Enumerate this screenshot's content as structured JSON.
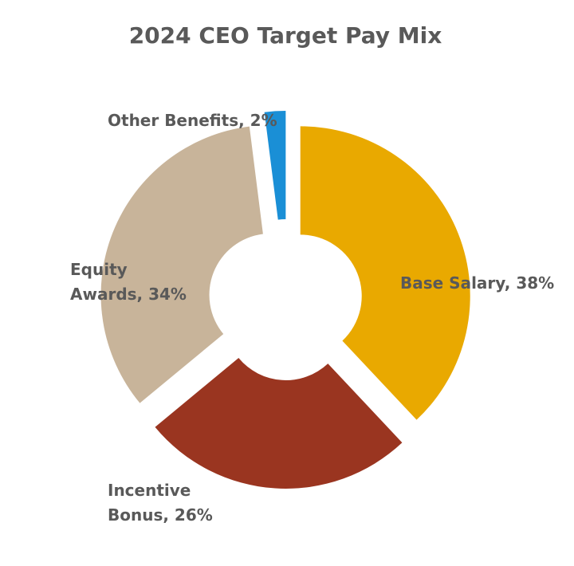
{
  "chart_data": {
    "type": "pie",
    "title": "2024 CEO Target Pay Mix",
    "categories": [
      "Base Salary",
      "Incentive Bonus",
      "Equity Awards",
      "Other Benefits"
    ],
    "values": [
      38,
      26,
      34,
      2
    ],
    "unit": "%",
    "labels": [
      [
        "Base Salary, 38%"
      ],
      [
        "Incentive",
        "Bonus, 26%"
      ],
      [
        "Equity",
        "Awards, 34%"
      ],
      [
        "Other Benefits, 2%"
      ]
    ],
    "colors": [
      "#E9A900",
      "#9A3520",
      "#C8B49A",
      "#1A8FD6"
    ],
    "legend": "none",
    "style": "doughnut-exploded"
  }
}
